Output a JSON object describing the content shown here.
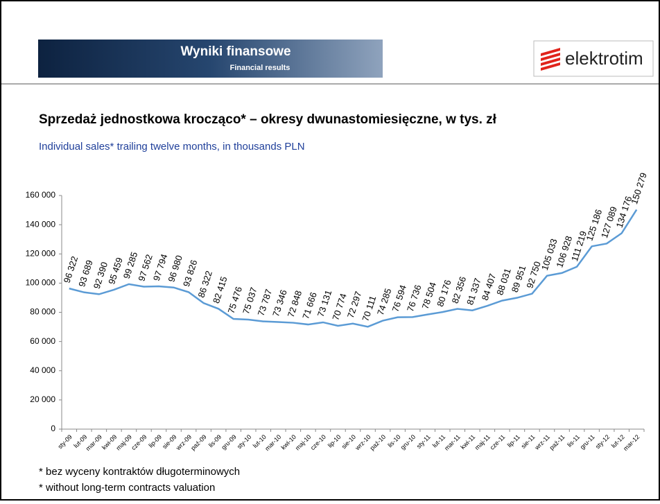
{
  "header": {
    "title": "Wyniki finansowe",
    "subtitle": "Financial results",
    "logo": "elektrotim"
  },
  "chart_data": {
    "type": "line",
    "title": "Sprzedaż jednostkowa krocząco* – okresy dwunastomiesięczne, w tys. zł",
    "subtitle": "Individual sales* trailing twelve months, in thousands PLN",
    "categories": [
      "sty-09",
      "lut-09",
      "mar-09",
      "kwi-09",
      "maj-09",
      "cze-09",
      "lip-09",
      "sie-09",
      "wrz-09",
      "paź-09",
      "lis-09",
      "gru-09",
      "sty-10",
      "lut-10",
      "mar-10",
      "kwi-10",
      "maj-10",
      "cze-10",
      "lip-10",
      "sie-10",
      "wrz-10",
      "paź-10",
      "lis-10",
      "gru-10",
      "sty-11",
      "lut-11",
      "mar-11",
      "kwi-11",
      "maj-11",
      "cze-11",
      "lip-11",
      "sie-11",
      "wrz-11",
      "paź-11",
      "lis-11",
      "gru-11",
      "sty-12",
      "lut-12",
      "mar-12"
    ],
    "values": [
      96322,
      93689,
      92390,
      95459,
      99285,
      97562,
      97794,
      96980,
      93826,
      86322,
      82415,
      75476,
      75037,
      73787,
      73346,
      72848,
      71666,
      73131,
      70774,
      72297,
      70111,
      74285,
      76594,
      76736,
      78504,
      80176,
      82356,
      81337,
      84407,
      88031,
      89951,
      92750,
      105033,
      106928,
      111219,
      125186,
      127089,
      134176,
      150279
    ],
    "value_labels": [
      "96 322",
      "93 689",
      "92 390",
      "95 459",
      "99 285",
      "97 562",
      "97 794",
      "96 980",
      "93 826",
      "86 322",
      "82 415",
      "75 476",
      "75 037",
      "73 787",
      "73 346",
      "72 848",
      "71 666",
      "73 131",
      "70 774",
      "72 297",
      "70 111",
      "74 285",
      "76 594",
      "76 736",
      "78 504",
      "80 176",
      "82 356",
      "81 337",
      "84 407",
      "88 031",
      "89 951",
      "92 750",
      "105 033",
      "106 928",
      "111 219",
      "125 186",
      "127 089",
      "134 176",
      "150 279"
    ],
    "color": "#5b9bd5",
    "ylim": [
      0,
      160000
    ],
    "yticks": [
      0,
      {
        "value": 20000,
        "label": "20 000"
      },
      {
        "value": 40000,
        "label": "40 000"
      },
      {
        "value": 60000,
        "label": "60 000"
      },
      {
        "value": 80000,
        "label": "80 000"
      },
      {
        "value": 100000,
        "label": "100 000"
      },
      {
        "value": 120000,
        "label": "120 000"
      },
      {
        "value": 140000,
        "label": "140 000"
      },
      {
        "value": 160000,
        "label": "160 000"
      }
    ],
    "grid": false
  },
  "footnotes": [
    "* bez wyceny kontraktów długoterminowych",
    "* without long-term contracts valuation"
  ]
}
